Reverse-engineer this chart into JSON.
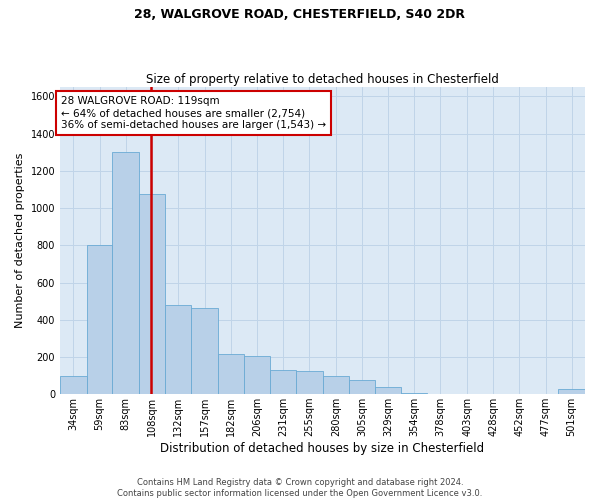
{
  "title_line1": "28, WALGROVE ROAD, CHESTERFIELD, S40 2DR",
  "title_line2": "Size of property relative to detached houses in Chesterfield",
  "xlabel": "Distribution of detached houses by size in Chesterfield",
  "ylabel": "Number of detached properties",
  "footer_line1": "Contains HM Land Registry data © Crown copyright and database right 2024.",
  "footer_line2": "Contains public sector information licensed under the Open Government Licence v3.0.",
  "annotation_line1": "28 WALGROVE ROAD: 119sqm",
  "annotation_line2": "← 64% of detached houses are smaller (2,754)",
  "annotation_line3": "36% of semi-detached houses are larger (1,543) →",
  "bar_color": "#b8d0e8",
  "bar_edge_color": "#6aaad4",
  "grid_color": "#c0d4e8",
  "background_color": "#dce9f5",
  "ref_line_color": "#cc0000",
  "ref_line_x": 119,
  "bin_edges": [
    34,
    59,
    83,
    108,
    132,
    157,
    182,
    206,
    231,
    255,
    280,
    305,
    329,
    354,
    378,
    403,
    428,
    452,
    477,
    501,
    526
  ],
  "bar_heights": [
    100,
    800,
    1300,
    1075,
    480,
    465,
    215,
    205,
    130,
    125,
    100,
    75,
    40,
    8,
    3,
    3,
    3,
    3,
    3,
    28
  ],
  "ylim": [
    0,
    1650
  ],
  "yticks": [
    0,
    200,
    400,
    600,
    800,
    1000,
    1200,
    1400,
    1600
  ],
  "annotation_box_color": "white",
  "annotation_box_edgecolor": "#cc0000",
  "title1_fontsize": 9,
  "title2_fontsize": 8.5,
  "ylabel_fontsize": 8,
  "xlabel_fontsize": 8.5,
  "tick_fontsize": 7,
  "footer_fontsize": 6,
  "ann_fontsize": 7.5
}
